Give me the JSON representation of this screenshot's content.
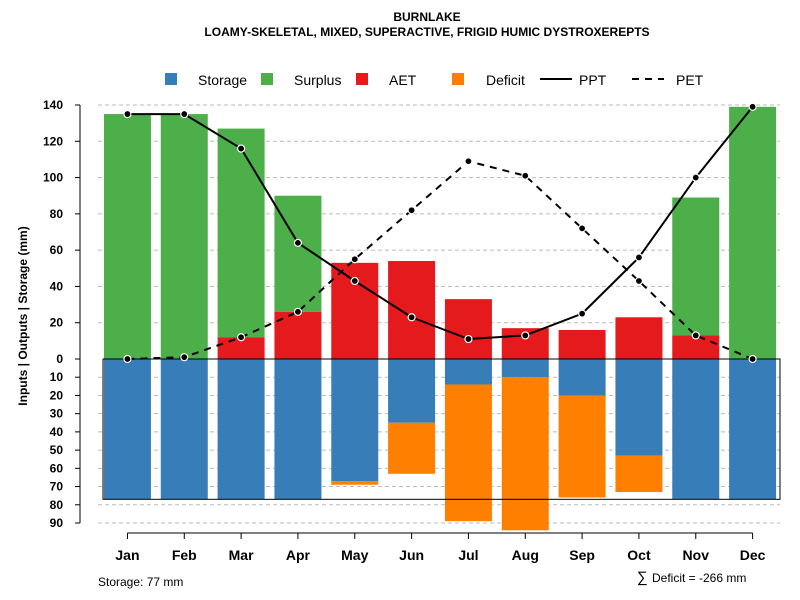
{
  "chart_data": {
    "type": "bar",
    "title": "BURNLAKE",
    "subtitle": "LOAMY-SKELETAL, MIXED, SUPERACTIVE, FRIGID HUMIC DYSTROXEREPTS",
    "ylabel": "Inputs | Outputs | Storage    (mm)",
    "categories": [
      "Jan",
      "Feb",
      "Mar",
      "Apr",
      "May",
      "Jun",
      "Jul",
      "Aug",
      "Sep",
      "Oct",
      "Nov",
      "Dec"
    ],
    "upper_ticks": [
      0,
      20,
      40,
      60,
      80,
      100,
      120,
      140
    ],
    "lower_ticks": [
      10,
      20,
      30,
      40,
      50,
      60,
      70,
      80,
      90
    ],
    "upper_range": [
      0,
      140
    ],
    "lower_range": [
      0,
      90
    ],
    "legend": [
      {
        "label": "Storage",
        "kind": "square",
        "color": "#377EB8"
      },
      {
        "label": "Surplus",
        "kind": "square",
        "color": "#4DAF4A"
      },
      {
        "label": "AET",
        "kind": "square",
        "color": "#E41A1C"
      },
      {
        "label": "Deficit",
        "kind": "square",
        "color": "#FF7F00"
      },
      {
        "label": "PPT",
        "kind": "line-solid",
        "color": "#000000"
      },
      {
        "label": "PET",
        "kind": "line-dashed",
        "color": "#000000"
      }
    ],
    "series": [
      {
        "name": "Surplus",
        "color": "#4DAF4A",
        "values": [
          135,
          135,
          115,
          64,
          0,
          0,
          0,
          0,
          0,
          0,
          76,
          139
        ]
      },
      {
        "name": "AET",
        "color": "#E41A1C",
        "values": [
          0,
          0,
          12,
          26,
          53,
          54,
          33,
          17,
          16,
          23,
          13,
          0
        ]
      },
      {
        "name": "Storage",
        "color": "#377EB8",
        "values": [
          77,
          77,
          77,
          77,
          67,
          35,
          14,
          10,
          20,
          53,
          77,
          77
        ]
      },
      {
        "name": "Deficit",
        "color": "#FF7F00",
        "values": [
          0,
          0,
          0,
          0,
          2,
          28,
          75,
          84,
          56,
          20,
          0,
          0
        ]
      },
      {
        "name": "PPT",
        "color": "#000000",
        "values": [
          135,
          135,
          116,
          64,
          43,
          23,
          11,
          13,
          25,
          56,
          100,
          139
        ]
      },
      {
        "name": "PET",
        "color": "#000000",
        "values": [
          0,
          1,
          12,
          26,
          55,
          82,
          109,
          101,
          72,
          43,
          13,
          0
        ]
      }
    ],
    "storage_capacity": 77,
    "footer_left": "Storage: 77 mm",
    "footer_right_symbol": "∑",
    "footer_right": "Deficit = -266 mm"
  }
}
